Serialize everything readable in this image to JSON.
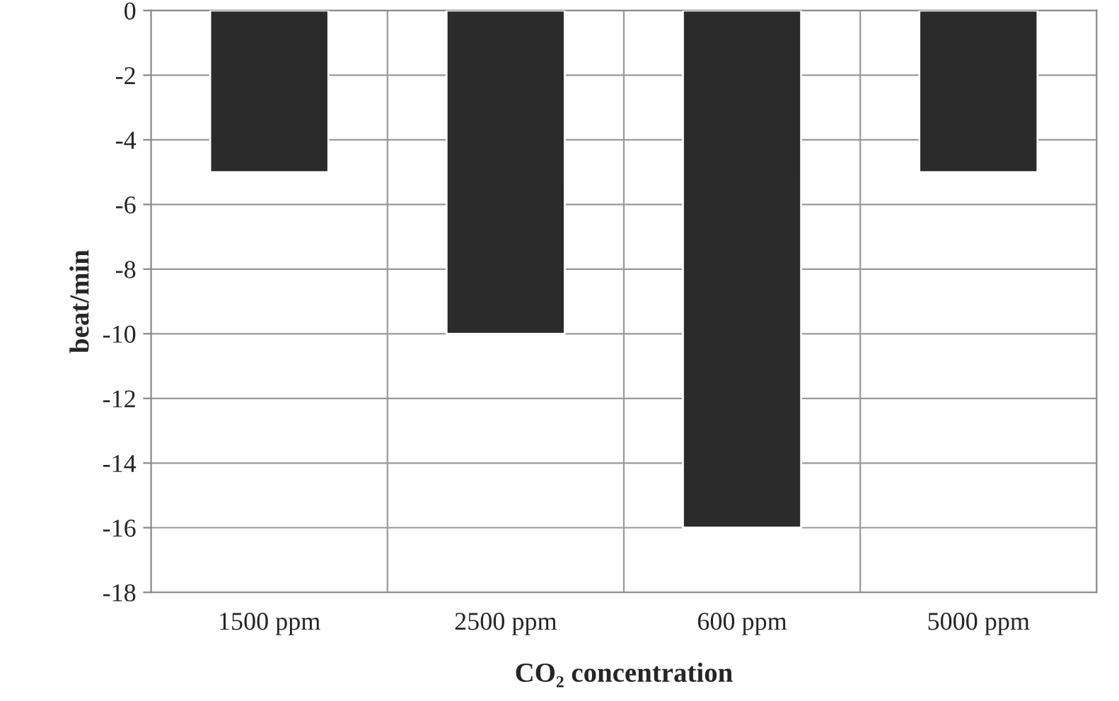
{
  "chart_data": {
    "type": "bar",
    "categories": [
      "1500 ppm",
      "2500 ppm",
      "600 ppm",
      "5000 ppm"
    ],
    "values": [
      -5,
      -10,
      -16,
      -5
    ],
    "color": "#2b2b2b",
    "xlabel": "CO₂ concentration",
    "ylabel": "beat/min",
    "ylim": [
      -18,
      0
    ],
    "yticks": [
      -18,
      -16,
      -14,
      -12,
      -10,
      -8,
      -6,
      -4,
      -2,
      0
    ],
    "grid": true
  }
}
